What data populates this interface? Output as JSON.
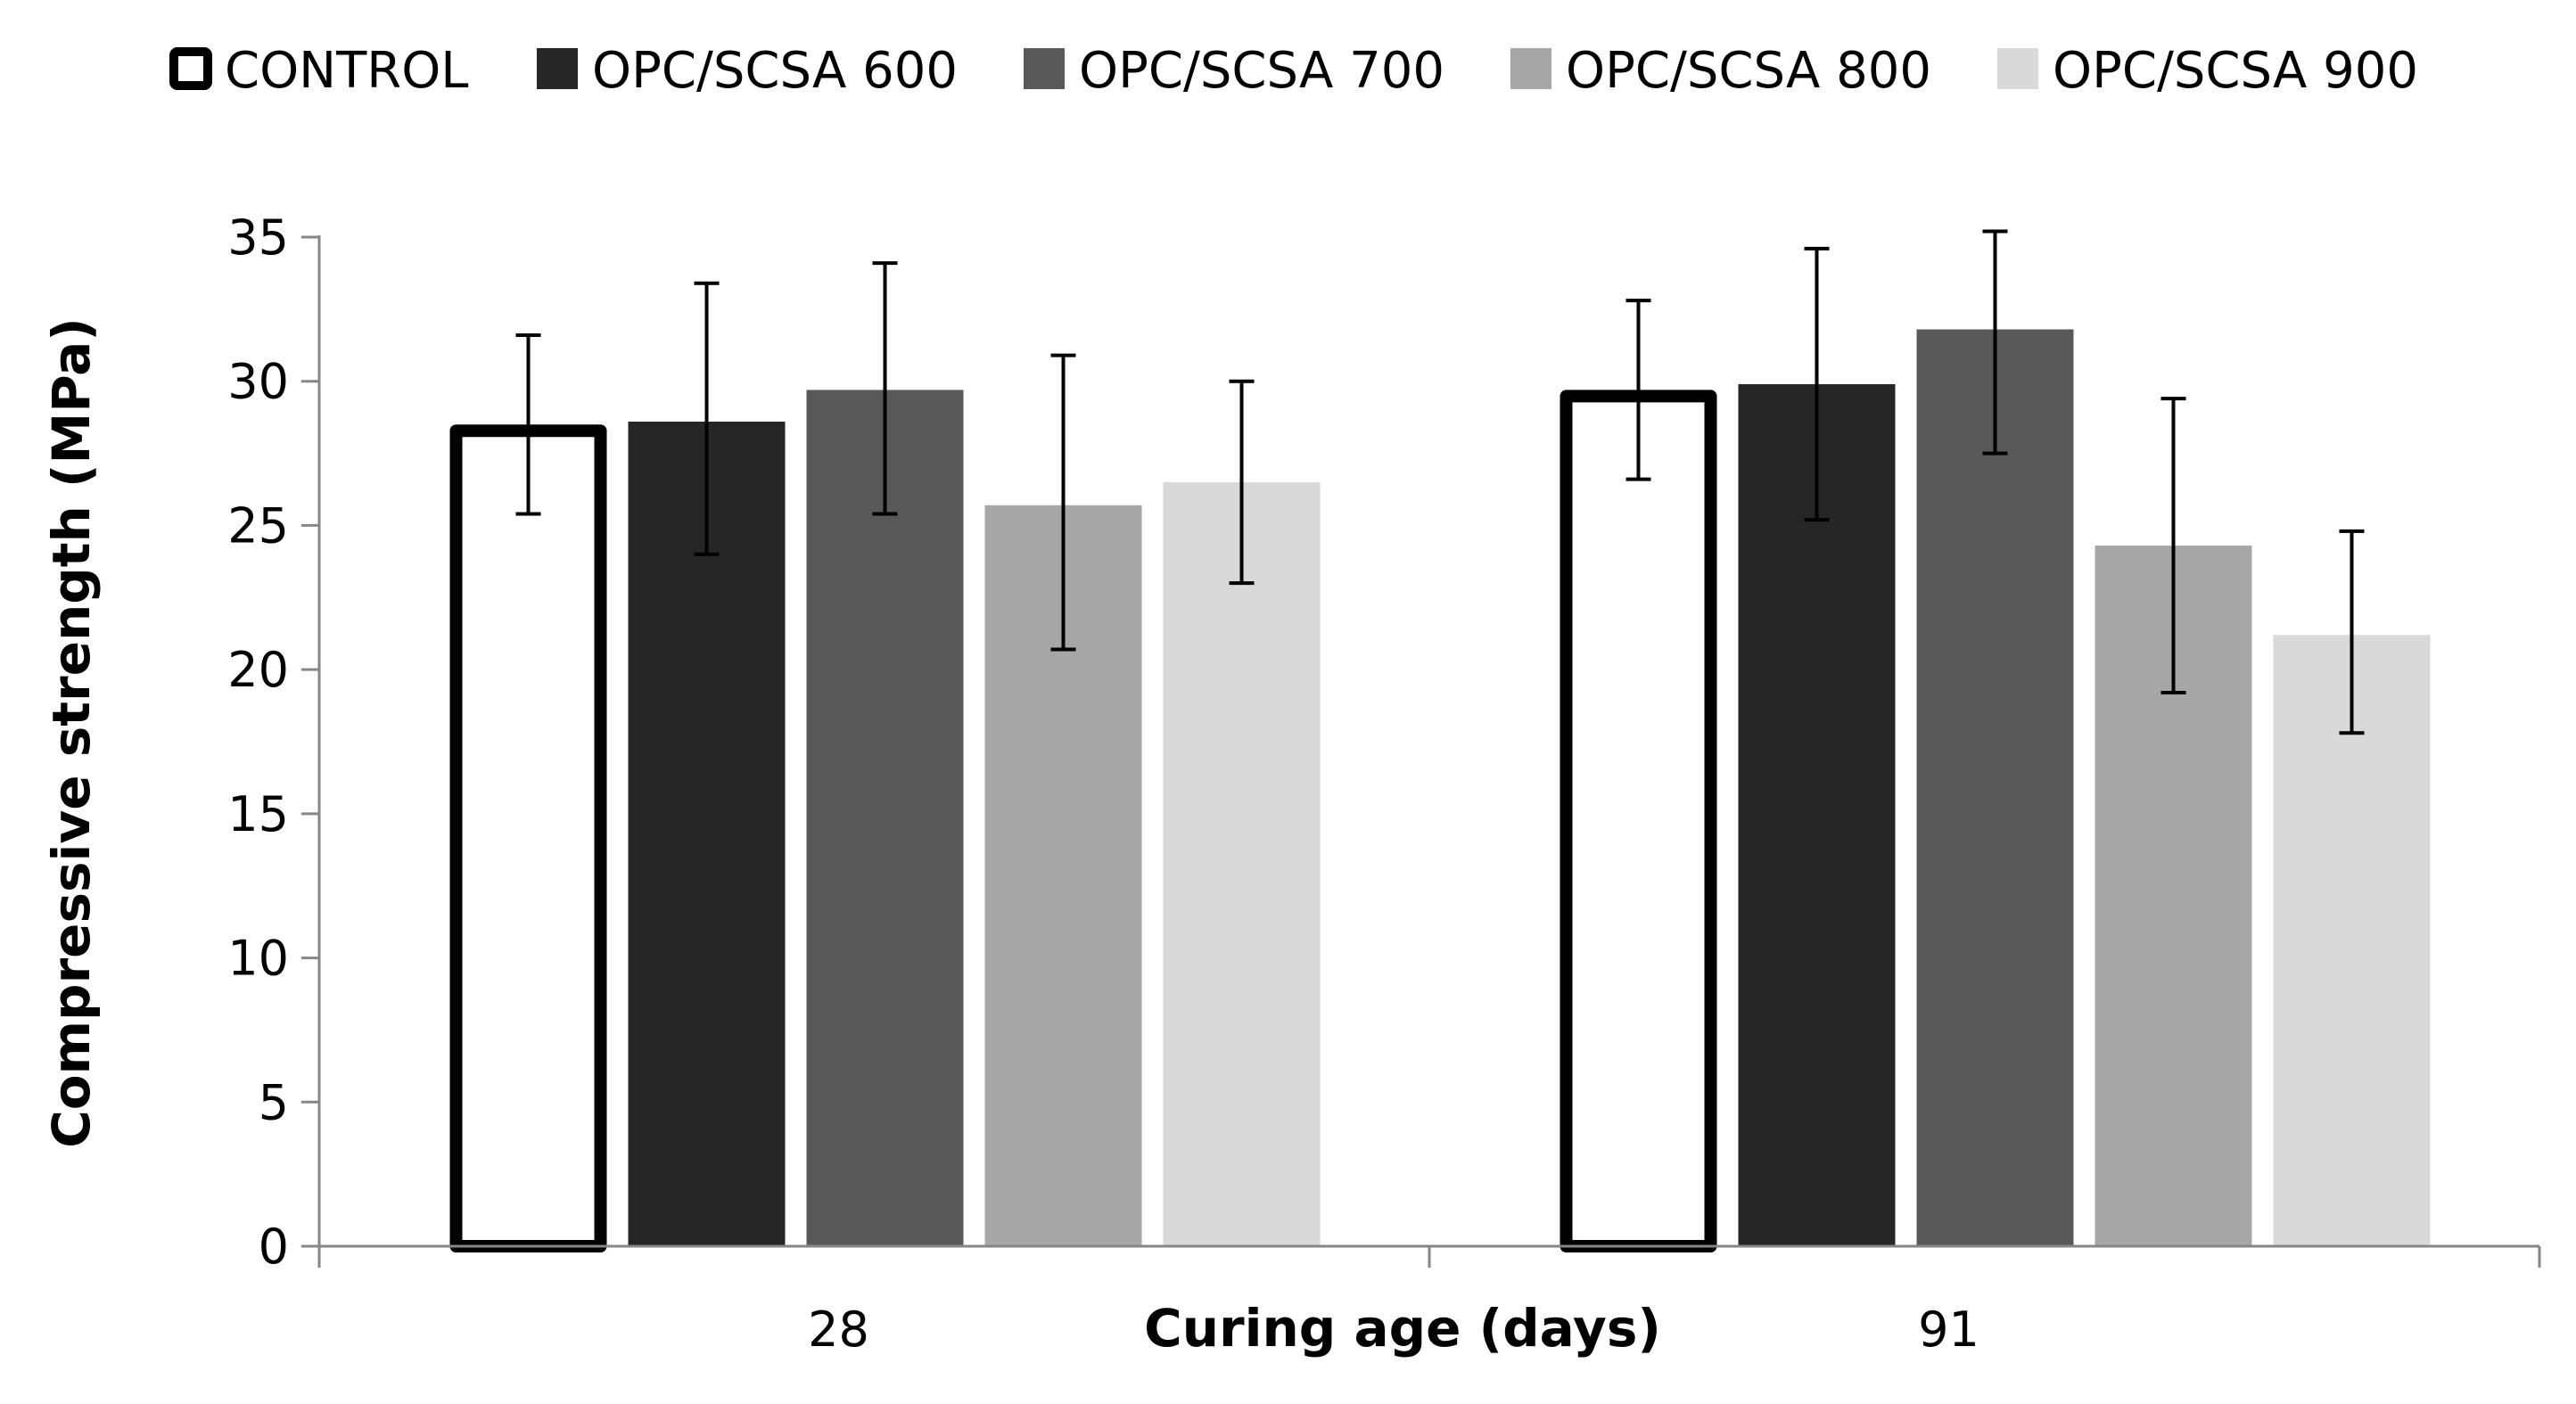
{
  "chart_data": {
    "type": "bar",
    "title": "",
    "xlabel": "Curing age (days)",
    "ylabel": "Compressive strength (MPa)",
    "categories": [
      "28",
      "91"
    ],
    "ylim": [
      0,
      35
    ],
    "yticks": [
      0,
      5,
      10,
      15,
      20,
      25,
      30,
      35
    ],
    "legend_position": "top",
    "grid": false,
    "series": [
      {
        "name": "CONTROL",
        "values": [
          28.5,
          29.7
        ],
        "err_low": [
          25.4,
          26.6
        ],
        "err_high": [
          31.6,
          32.8
        ],
        "fill": "#ffffff",
        "stroke": "#000000",
        "outlined": true
      },
      {
        "name": "OPC/SCSA 600",
        "values": [
          28.6,
          29.9
        ],
        "err_low": [
          24.0,
          25.2
        ],
        "err_high": [
          33.4,
          34.6
        ],
        "fill": "#262626",
        "stroke": "none",
        "outlined": false
      },
      {
        "name": "OPC/SCSA 700",
        "values": [
          29.7,
          31.8
        ],
        "err_low": [
          25.4,
          27.5
        ],
        "err_high": [
          34.1,
          35.2
        ],
        "fill": "#595959",
        "stroke": "none",
        "outlined": false
      },
      {
        "name": "OPC/SCSA 800",
        "values": [
          25.7,
          24.3
        ],
        "err_low": [
          20.7,
          19.2
        ],
        "err_high": [
          30.9,
          29.4
        ],
        "fill": "#a6a6a6",
        "stroke": "none",
        "outlined": false
      },
      {
        "name": "OPC/SCSA 900",
        "values": [
          26.5,
          21.2
        ],
        "err_low": [
          23.0,
          17.8
        ],
        "err_high": [
          30.0,
          24.8
        ],
        "fill": "#d9d9d9",
        "stroke": "none",
        "outlined": false
      }
    ]
  }
}
